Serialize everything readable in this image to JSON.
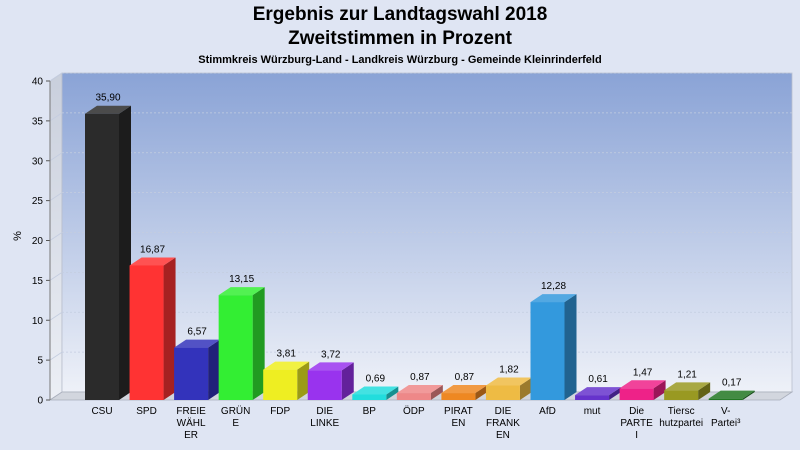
{
  "header": {
    "title_line1": "Ergebnis zur Landtagswahl 2018",
    "title_line2": "Zweitstimmen in Prozent",
    "subtitle": "Stimmkreis Würzburg-Land - Landkreis Würzburg - Gemeinde Kleinrinderfeld"
  },
  "chart_data": {
    "type": "bar",
    "title": "Ergebnis zur Landtagswahl 2018 Zweitstimmen in Prozent",
    "subtitle": "Stimmkreis Würzburg-Land - Landkreis Würzburg - Gemeinde Kleinrinderfeld",
    "ylabel": "%",
    "xlabel": "",
    "ylim": [
      0,
      40
    ],
    "yticks": [
      0,
      5,
      10,
      15,
      20,
      25,
      30,
      35,
      40
    ],
    "grid": true,
    "categories": [
      {
        "lines": [
          "CSU"
        ]
      },
      {
        "lines": [
          "SPD"
        ]
      },
      {
        "lines": [
          "FREIE",
          "WÄHL",
          "ER"
        ]
      },
      {
        "lines": [
          "GRÜN",
          "E"
        ]
      },
      {
        "lines": [
          "FDP"
        ]
      },
      {
        "lines": [
          "DIE",
          "LINKE"
        ]
      },
      {
        "lines": [
          "BP"
        ]
      },
      {
        "lines": [
          "ÖDP"
        ]
      },
      {
        "lines": [
          "PIRAT",
          "EN"
        ]
      },
      {
        "lines": [
          "DIE",
          "FRANK",
          "EN"
        ]
      },
      {
        "lines": [
          "AfD"
        ]
      },
      {
        "lines": [
          "mut"
        ]
      },
      {
        "lines": [
          "Die",
          "PARTE",
          "I"
        ]
      },
      {
        "lines": [
          "Tiersc",
          "hutzpartei"
        ]
      },
      {
        "lines": [
          "V-",
          "Partei³"
        ]
      }
    ],
    "values": [
      35.9,
      16.87,
      6.57,
      13.15,
      3.81,
      3.72,
      0.69,
      0.87,
      0.87,
      1.82,
      12.28,
      0.61,
      1.47,
      1.21,
      0.17
    ],
    "value_labels": [
      "35,90",
      "16,87",
      "6,57",
      "13,15",
      "3,81",
      "3,72",
      "0,69",
      "0,87",
      "0,87",
      "1,82",
      "12,28",
      "0,61",
      "1,47",
      "1,21",
      "0,17"
    ],
    "colors": [
      "#2b2b2b",
      "#ff3333",
      "#3333bb",
      "#33ee33",
      "#eeee22",
      "#9933ee",
      "#22dddd",
      "#ee8888",
      "#ee8822",
      "#eebb44",
      "#3399dd",
      "#6633cc",
      "#ee2288",
      "#999922",
      "#227722"
    ]
  }
}
